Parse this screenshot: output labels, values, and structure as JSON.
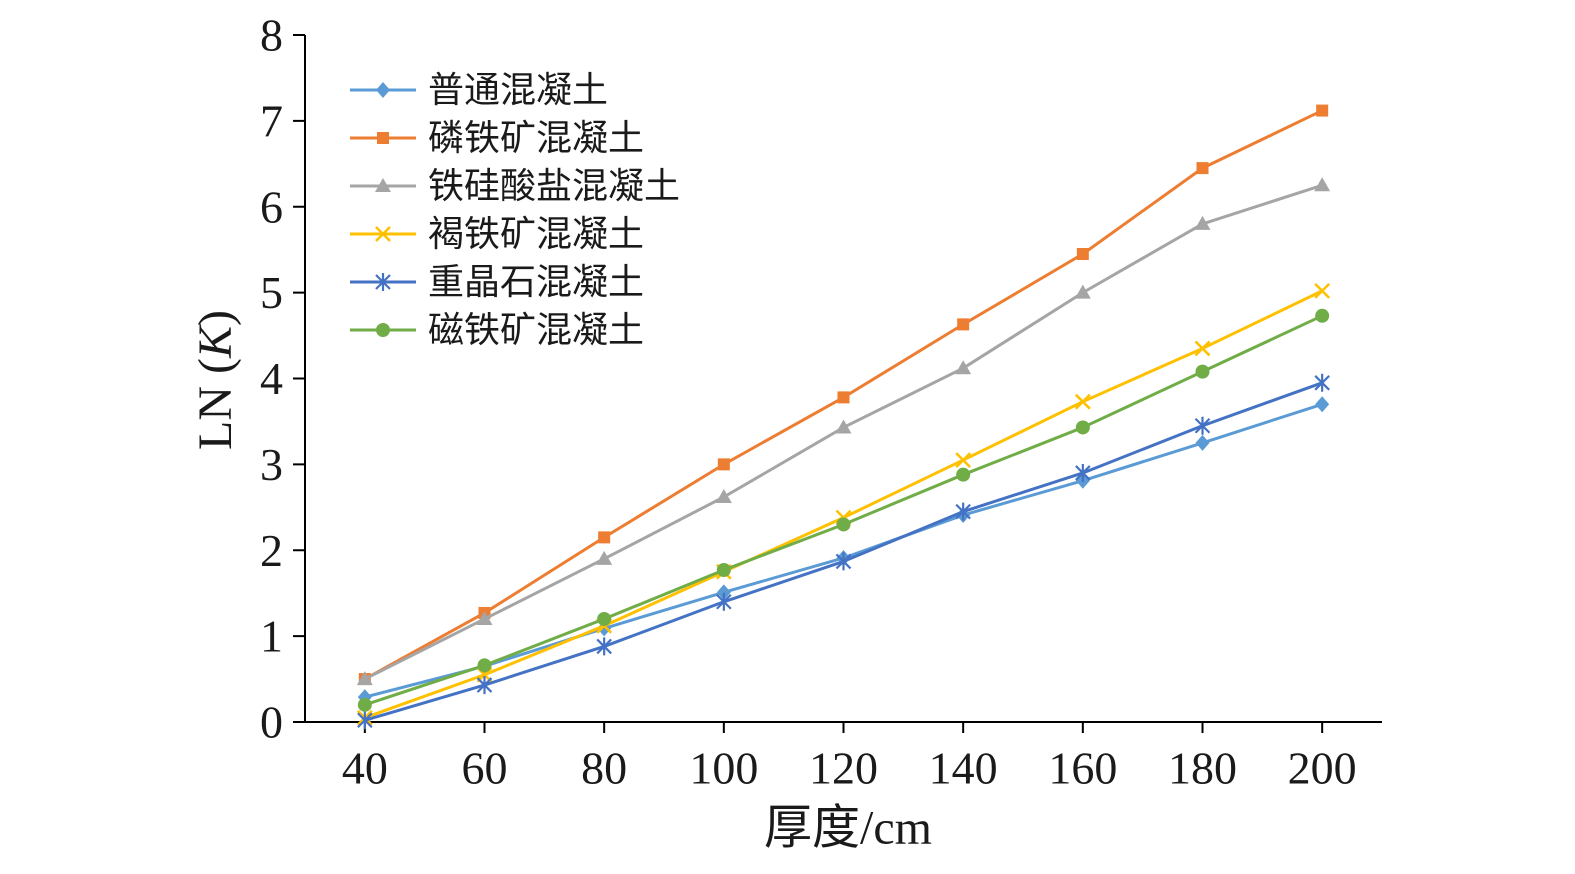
{
  "chart_data": {
    "type": "line",
    "categories": [
      40,
      60,
      80,
      100,
      120,
      140,
      160,
      180,
      200
    ],
    "ylim": [
      0,
      8
    ],
    "yticks": [
      0,
      1,
      2,
      3,
      4,
      5,
      6,
      7,
      8
    ],
    "xlabel": "厚度/cm",
    "ylabel": {
      "prefix": "LN (",
      "italic": "K",
      "suffix": ")"
    },
    "legend_position": "top-left",
    "grid": false,
    "axis_color": "#000000",
    "series": [
      {
        "name": "普通混凝土",
        "color": "#5B9BD5",
        "marker": "diamond",
        "values": [
          0.29,
          0.65,
          1.09,
          1.51,
          1.91,
          2.41,
          2.81,
          3.25,
          3.7
        ]
      },
      {
        "name": "磷铁矿混凝土",
        "color": "#ED7D31",
        "marker": "square",
        "values": [
          0.5,
          1.27,
          2.15,
          3.0,
          3.78,
          4.63,
          5.45,
          6.45,
          7.12
        ]
      },
      {
        "name": "铁硅酸盐混凝土",
        "color": "#A5A5A5",
        "marker": "triangle",
        "values": [
          0.5,
          1.2,
          1.9,
          2.62,
          3.43,
          4.12,
          5.0,
          5.8,
          6.25
        ]
      },
      {
        "name": "褐铁矿混凝土",
        "color": "#FFC000",
        "marker": "x",
        "values": [
          0.05,
          0.55,
          1.12,
          1.75,
          2.38,
          3.05,
          3.73,
          4.35,
          5.02
        ]
      },
      {
        "name": "重晶石混凝土",
        "color": "#4472C4",
        "marker": "asterisk",
        "values": [
          0.02,
          0.43,
          0.88,
          1.4,
          1.87,
          2.45,
          2.9,
          3.45,
          3.95
        ]
      },
      {
        "name": "磁铁矿混凝土",
        "color": "#70AD47",
        "marker": "circle",
        "values": [
          0.2,
          0.66,
          1.2,
          1.77,
          2.3,
          2.88,
          3.43,
          4.08,
          4.73
        ]
      }
    ]
  }
}
